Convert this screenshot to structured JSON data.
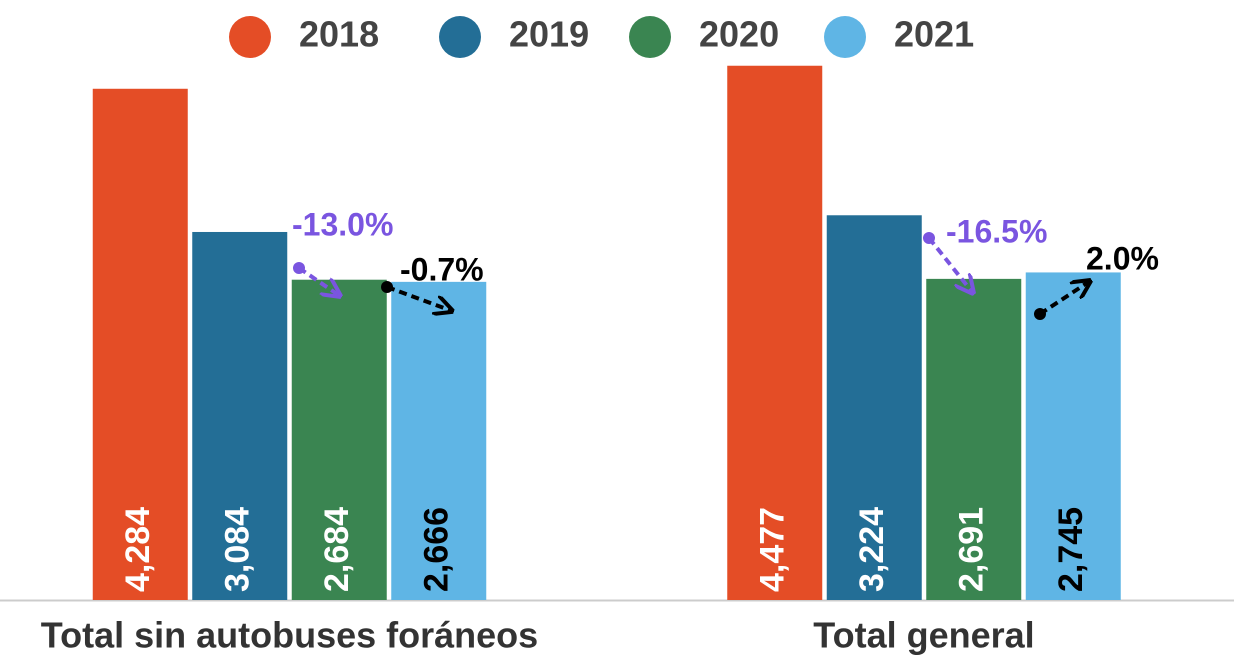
{
  "chart_data": {
    "type": "bar",
    "categories": [
      "Total sin autobuses foráneos",
      "Total general"
    ],
    "series": [
      {
        "name": "2018",
        "color": "#e44d26",
        "label_color": "#ffffff",
        "values": [
          4284,
          4477
        ],
        "value_labels": [
          "4,284",
          "4,477"
        ]
      },
      {
        "name": "2019",
        "color": "#236e96",
        "label_color": "#ffffff",
        "values": [
          3084,
          3224
        ],
        "value_labels": [
          "3,084",
          "3,224"
        ]
      },
      {
        "name": "2020",
        "color": "#3a8551",
        "label_color": "#ffffff",
        "values": [
          2684,
          2691
        ],
        "value_labels": [
          "2,684",
          "2,691"
        ]
      },
      {
        "name": "2021",
        "color": "#5fb5e5",
        "label_color": "#000000",
        "values": [
          2666,
          2745
        ],
        "value_labels": [
          "2,666",
          "2,745"
        ]
      }
    ],
    "annotations": [
      {
        "text": "-13.0%",
        "color": "#7a55e0"
      },
      {
        "text": "-0.7%",
        "color": "#000000"
      },
      {
        "text": "-16.5%",
        "color": "#7a55e0"
      },
      {
        "text": "2.0%",
        "color": "#000000"
      }
    ],
    "ylim": [
      0,
      4500
    ]
  }
}
